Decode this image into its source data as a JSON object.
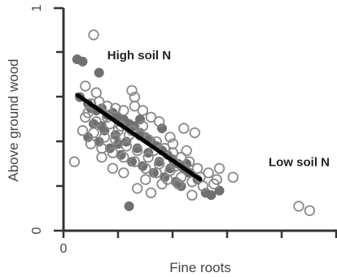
{
  "chart_data": {
    "type": "scatter",
    "xlabel": "Fine roots",
    "ylabel": "Above ground wood",
    "xlim": [
      0,
      1
    ],
    "ylim": [
      0,
      1
    ],
    "x_ticks": [
      {
        "value": 0,
        "label": "0"
      }
    ],
    "y_ticks": [
      {
        "value": 0,
        "label": "0"
      },
      {
        "value": 1,
        "label": "1"
      }
    ],
    "annotations": [
      {
        "text": "High soil N",
        "x": 0.16,
        "y": 0.77
      },
      {
        "text": "Low soil N",
        "x": 0.75,
        "y": 0.29
      }
    ],
    "series": [
      {
        "marker": "filled-circle",
        "color": "#707070",
        "points": [
          [
            0.05,
            0.77
          ],
          [
            0.07,
            0.76
          ],
          [
            0.13,
            0.71
          ],
          [
            0.06,
            0.6
          ],
          [
            0.09,
            0.57
          ],
          [
            0.1,
            0.55
          ],
          [
            0.12,
            0.54
          ],
          [
            0.14,
            0.55
          ],
          [
            0.16,
            0.52
          ],
          [
            0.18,
            0.53
          ],
          [
            0.2,
            0.51
          ],
          [
            0.22,
            0.5
          ],
          [
            0.24,
            0.48
          ],
          [
            0.26,
            0.47
          ],
          [
            0.28,
            0.44
          ],
          [
            0.3,
            0.42
          ],
          [
            0.32,
            0.4
          ],
          [
            0.34,
            0.38
          ],
          [
            0.36,
            0.36
          ],
          [
            0.38,
            0.34
          ],
          [
            0.4,
            0.32
          ],
          [
            0.42,
            0.3
          ],
          [
            0.44,
            0.28
          ],
          [
            0.46,
            0.26
          ],
          [
            0.11,
            0.48
          ],
          [
            0.15,
            0.45
          ],
          [
            0.19,
            0.43
          ],
          [
            0.23,
            0.4
          ],
          [
            0.27,
            0.37
          ],
          [
            0.31,
            0.35
          ],
          [
            0.35,
            0.31
          ],
          [
            0.39,
            0.28
          ],
          [
            0.09,
            0.42
          ],
          [
            0.13,
            0.4
          ],
          [
            0.17,
            0.37
          ],
          [
            0.21,
            0.34
          ],
          [
            0.25,
            0.31
          ],
          [
            0.29,
            0.29
          ],
          [
            0.33,
            0.26
          ],
          [
            0.37,
            0.24
          ],
          [
            0.41,
            0.22
          ],
          [
            0.45,
            0.3
          ],
          [
            0.49,
            0.23
          ],
          [
            0.52,
            0.17
          ],
          [
            0.54,
            0.16
          ],
          [
            0.57,
            0.18
          ],
          [
            0.43,
            0.2
          ],
          [
            0.24,
            0.11
          ],
          [
            0.28,
            0.5
          ],
          [
            0.36,
            0.46
          ],
          [
            0.2,
            0.39
          ],
          [
            0.14,
            0.47
          ]
        ]
      },
      {
        "marker": "open-circle",
        "color": "#8a8a8a",
        "points": [
          [
            0.11,
            0.88
          ],
          [
            0.08,
            0.65
          ],
          [
            0.12,
            0.62
          ],
          [
            0.25,
            0.63
          ],
          [
            0.26,
            0.6
          ],
          [
            0.1,
            0.57
          ],
          [
            0.13,
            0.58
          ],
          [
            0.16,
            0.56
          ],
          [
            0.19,
            0.55
          ],
          [
            0.22,
            0.54
          ],
          [
            0.26,
            0.56
          ],
          [
            0.29,
            0.54
          ],
          [
            0.32,
            0.51
          ],
          [
            0.35,
            0.49
          ],
          [
            0.08,
            0.51
          ],
          [
            0.12,
            0.49
          ],
          [
            0.17,
            0.48
          ],
          [
            0.21,
            0.47
          ],
          [
            0.25,
            0.45
          ],
          [
            0.28,
            0.43
          ],
          [
            0.31,
            0.41
          ],
          [
            0.34,
            0.4
          ],
          [
            0.37,
            0.37
          ],
          [
            0.4,
            0.35
          ],
          [
            0.43,
            0.33
          ],
          [
            0.46,
            0.31
          ],
          [
            0.49,
            0.28
          ],
          [
            0.07,
            0.45
          ],
          [
            0.11,
            0.44
          ],
          [
            0.15,
            0.42
          ],
          [
            0.19,
            0.41
          ],
          [
            0.23,
            0.38
          ],
          [
            0.27,
            0.36
          ],
          [
            0.31,
            0.33
          ],
          [
            0.35,
            0.3
          ],
          [
            0.39,
            0.27
          ],
          [
            0.43,
            0.24
          ],
          [
            0.47,
            0.22
          ],
          [
            0.1,
            0.39
          ],
          [
            0.14,
            0.37
          ],
          [
            0.18,
            0.35
          ],
          [
            0.22,
            0.33
          ],
          [
            0.26,
            0.31
          ],
          [
            0.3,
            0.28
          ],
          [
            0.34,
            0.26
          ],
          [
            0.38,
            0.23
          ],
          [
            0.42,
            0.21
          ],
          [
            0.5,
            0.24
          ],
          [
            0.53,
            0.26
          ],
          [
            0.56,
            0.23
          ],
          [
            0.62,
            0.24
          ],
          [
            0.57,
            0.28
          ],
          [
            0.44,
            0.46
          ],
          [
            0.48,
            0.44
          ],
          [
            0.39,
            0.42
          ],
          [
            0.29,
            0.47
          ],
          [
            0.04,
            0.31
          ],
          [
            0.18,
            0.28
          ],
          [
            0.22,
            0.26
          ],
          [
            0.3,
            0.23
          ],
          [
            0.36,
            0.21
          ],
          [
            0.47,
            0.16
          ],
          [
            0.32,
            0.17
          ],
          [
            0.27,
            0.19
          ],
          [
            0.4,
            0.39
          ],
          [
            0.45,
            0.36
          ],
          [
            0.2,
            0.45
          ],
          [
            0.16,
            0.51
          ],
          [
            0.09,
            0.53
          ],
          [
            0.14,
            0.33
          ],
          [
            0.24,
            0.43
          ],
          [
            0.33,
            0.36
          ],
          [
            0.41,
            0.29
          ],
          [
            0.51,
            0.2
          ],
          [
            0.55,
            0.21
          ],
          [
            0.86,
            0.11
          ],
          [
            0.9,
            0.09
          ]
        ]
      }
    ],
    "trendline": {
      "x": [
        0.05,
        0.5
      ],
      "y": [
        0.61,
        0.23
      ],
      "color": "#000000"
    }
  }
}
